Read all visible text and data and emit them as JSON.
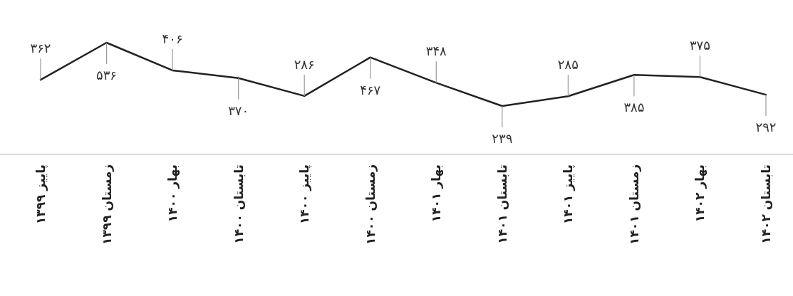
{
  "chart_data": {
    "type": "line",
    "categories": [
      "پاییز ۱۳۹۹",
      "زمستان ۱۳۹۹",
      "بهار ۱۴۰۰",
      "تابستان ۱۴۰۰",
      "پاییز ۱۴۰۰",
      "زمستان ۱۴۰۰",
      "بهار ۱۴۰۱",
      "تابستان ۱۴۰۱",
      "پاییز ۱۴۰۱",
      "زمستان ۱۴۰۱",
      "بهار ۱۴۰۲",
      "تابستان ۱۴۰۲"
    ],
    "series": [
      {
        "color": "#222222",
        "values": [
          362,
          536,
          406,
          370,
          286,
          467,
          348,
          239,
          285,
          385,
          375,
          292
        ],
        "value_labels": [
          "۳۶۲",
          "۵۳۶",
          "۴۰۶",
          "۳۷۰",
          "۲۸۶",
          "۴۶۷",
          "۳۴۸",
          "۲۳۹",
          "۲۸۵",
          "۳۸۵",
          "۳۷۵",
          "۲۹۲"
        ]
      }
    ],
    "tick_labels": "x",
    "line_style": "solid"
  }
}
